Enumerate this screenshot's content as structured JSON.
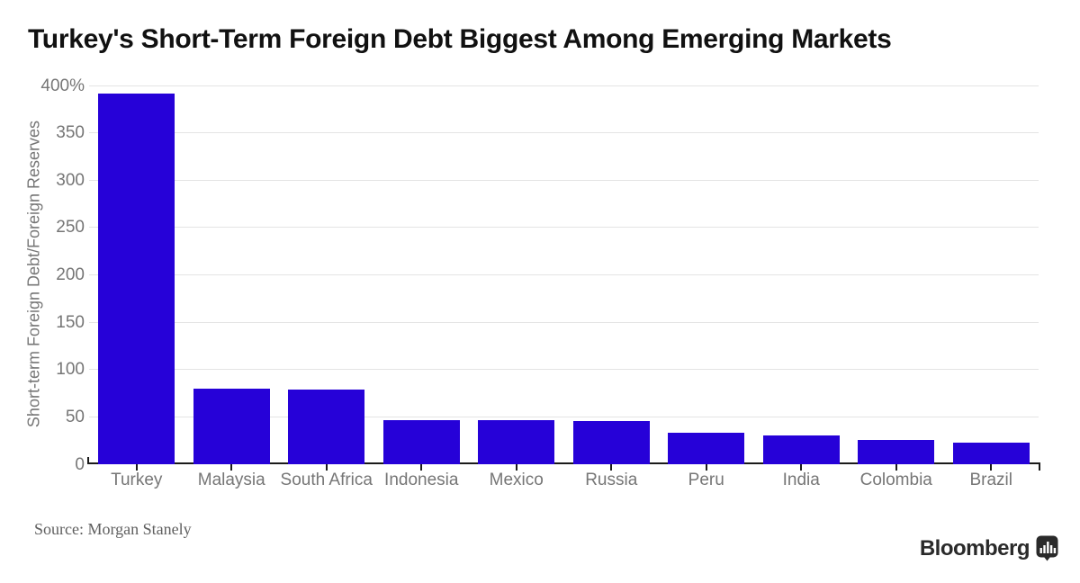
{
  "title": "Turkey's Short-Term Foreign Debt Biggest Among Emerging Markets",
  "source": "Source: Morgan Stanely",
  "logo": {
    "text": "Bloomberg",
    "icon": "bar-chart-speech-bubble-icon"
  },
  "colors": {
    "bar": "#2601d8",
    "grid": "#e4e4e4",
    "axis": "#1a1a1a",
    "tick_text": "#767676",
    "title_text": "#111111",
    "source_text": "#5f5f5f",
    "logo_color": "#2a2a2a"
  },
  "chart_data": {
    "type": "bar",
    "title": "Turkey's Short-Term Foreign Debt Biggest Among Emerging Markets",
    "categories": [
      "Turkey",
      "Malaysia",
      "South Africa",
      "Indonesia",
      "Mexico",
      "Russia",
      "Peru",
      "India",
      "Colombia",
      "Brazil"
    ],
    "values": [
      391,
      80,
      79,
      47,
      47,
      46,
      33,
      30,
      26,
      23
    ],
    "xlabel": "",
    "ylabel": "Short-term Foreign Debt/Foreign Reserves",
    "ylim": [
      0,
      400
    ],
    "yticks": [
      {
        "value": 0,
        "label": "0"
      },
      {
        "value": 50,
        "label": "50"
      },
      {
        "value": 100,
        "label": "100"
      },
      {
        "value": 150,
        "label": "150"
      },
      {
        "value": 200,
        "label": "200"
      },
      {
        "value": 250,
        "label": "250"
      },
      {
        "value": 300,
        "label": "300"
      },
      {
        "value": 350,
        "label": "350"
      },
      {
        "value": 400,
        "label": "400%"
      }
    ],
    "grid": "horizontal",
    "legend": "none"
  }
}
